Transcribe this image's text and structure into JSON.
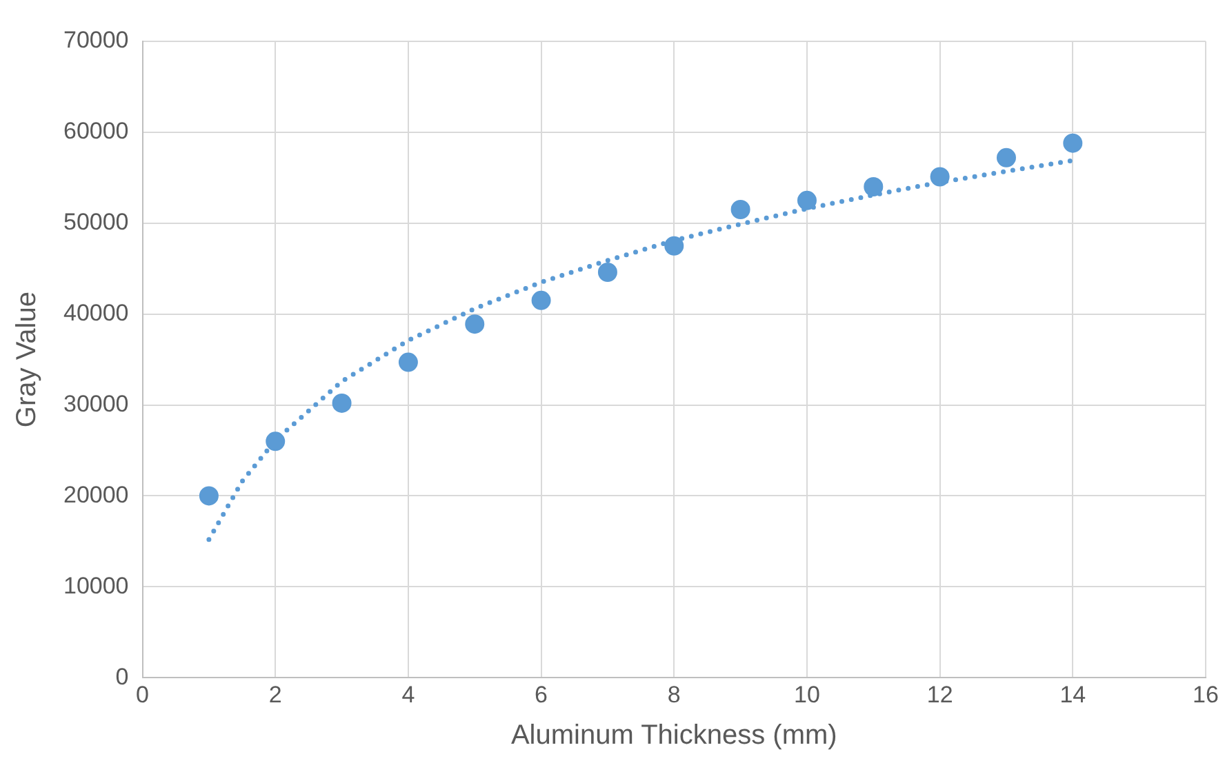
{
  "chart_data": {
    "type": "scatter",
    "xlabel": "Aluminum Thickness (mm)",
    "ylabel": "Gray Value",
    "xlim": [
      0,
      16
    ],
    "xticks": [
      0,
      2,
      4,
      6,
      8,
      10,
      12,
      14,
      16
    ],
    "ylim": [
      0,
      70000
    ],
    "yticks": [
      0,
      10000,
      20000,
      30000,
      40000,
      50000,
      60000,
      70000
    ],
    "grid": true,
    "legend": false,
    "marker": "circle",
    "series": [
      {
        "color": "#5b9bd5",
        "x": [
          1,
          2,
          3,
          4,
          5,
          6,
          7,
          8,
          9,
          10,
          11,
          12,
          13,
          14
        ],
        "values": [
          20000,
          26000,
          30200,
          34700,
          38900,
          41500,
          44600,
          47500,
          51500,
          52500,
          54000,
          55100,
          57200,
          58800
        ]
      },
      {
        "type": "line",
        "color": "#5b9bd5",
        "line_style": "dotted",
        "marker": "none",
        "x": [
          1,
          1.5,
          2,
          3,
          4,
          5,
          6,
          7,
          8,
          9,
          10,
          11,
          12,
          13,
          14
        ],
        "values": [
          15200,
          21600,
          26100,
          32600,
          37100,
          40600,
          43500,
          45900,
          48100,
          49900,
          51600,
          53100,
          54500,
          55700,
          56900
        ]
      }
    ]
  }
}
